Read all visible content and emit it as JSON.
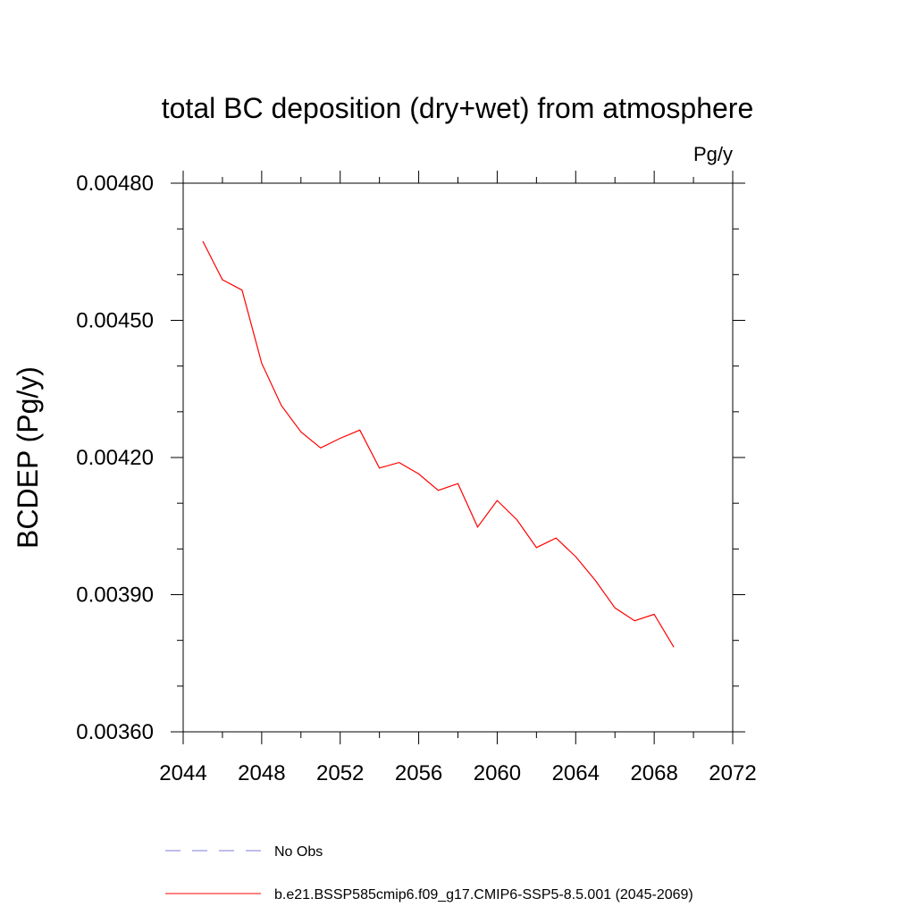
{
  "chart_data": {
    "type": "line",
    "title": "total BC deposition (dry+wet) from atmosphere",
    "units_label": "Pg/y",
    "xlabel": "",
    "ylabel": "BCDEP  (Pg/y)",
    "xlim": [
      2044,
      2072
    ],
    "ylim": [
      0.0036,
      0.0048
    ],
    "x_ticks": [
      2044,
      2048,
      2052,
      2056,
      2060,
      2064,
      2068,
      2072
    ],
    "x_tick_labels": [
      "2044",
      "2048",
      "2052",
      "2056",
      "2060",
      "2064",
      "2068",
      "2072"
    ],
    "x_minor_step": 2,
    "y_ticks": [
      0.0036,
      0.0039,
      0.0042,
      0.0045,
      0.0048
    ],
    "y_tick_labels": [
      "0.00360",
      "0.00390",
      "0.00420",
      "0.00450",
      "0.00480"
    ],
    "y_minor_step": 0.0001,
    "grid": false,
    "series": [
      {
        "name": "b.e21.BSSP585cmip6.f09_g17.CMIP6-SSP5-8.5.001 (2045-2069)",
        "color": "#ff0000",
        "dash": "solid",
        "x": [
          2045,
          2046,
          2047,
          2048,
          2049,
          2050,
          2051,
          2052,
          2053,
          2054,
          2055,
          2056,
          2057,
          2058,
          2059,
          2060,
          2061,
          2062,
          2063,
          2064,
          2065,
          2066,
          2067,
          2068,
          2069
        ],
        "y": [
          0.004673,
          0.004589,
          0.004566,
          0.004406,
          0.004314,
          0.004256,
          0.004221,
          0.004242,
          0.00426,
          0.004177,
          0.004189,
          0.004164,
          0.004128,
          0.004143,
          0.004048,
          0.004106,
          0.004064,
          0.004003,
          0.004024,
          0.003983,
          0.003931,
          0.003871,
          0.003843,
          0.003857,
          0.003785
        ]
      }
    ],
    "legend": [
      {
        "label": "No Obs",
        "color": "#7b7bd6",
        "dash": "dashed"
      },
      {
        "label": "b.e21.BSSP585cmip6.f09_g17.CMIP6-SSP5-8.5.001 (2045-2069)",
        "color": "#ff0000",
        "dash": "solid"
      }
    ],
    "legend_position": "bottom"
  }
}
